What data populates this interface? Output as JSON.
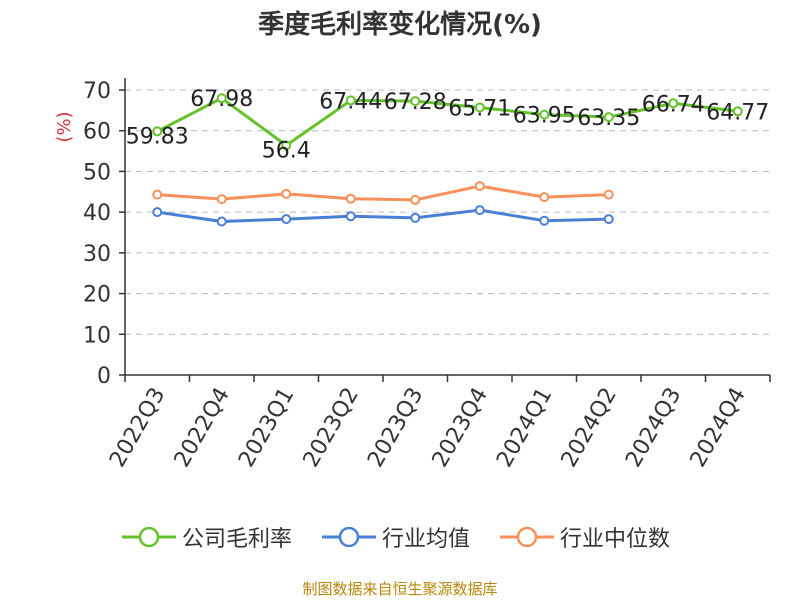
{
  "title": "季度毛利率变化情况(%)",
  "source_note": "制图数据来自恒生聚源数据库",
  "colors": {
    "company": "#66c22a",
    "industry_avg": "#4a7fd6",
    "industry_median": "#f7905a",
    "axis": "#333333",
    "grid": "#bbbbbb",
    "ylabel": "#d4323c",
    "source": "#b8860b"
  },
  "chart_data": {
    "type": "line",
    "title": "季度毛利率变化情况(%)",
    "xlabel": "",
    "ylabel": "(%)",
    "ylim": [
      0,
      70
    ],
    "yticks": [
      0,
      10,
      20,
      30,
      40,
      50,
      60,
      70
    ],
    "grid": true,
    "legend_position": "bottom",
    "categories": [
      "2022Q3",
      "2022Q4",
      "2023Q1",
      "2023Q2",
      "2023Q3",
      "2023Q4",
      "2024Q1",
      "2024Q2",
      "2024Q3",
      "2024Q4"
    ],
    "series": [
      {
        "name": "公司毛利率",
        "color_key": "company",
        "values": [
          59.83,
          67.98,
          56.4,
          67.44,
          67.28,
          65.71,
          63.95,
          63.35,
          66.74,
          64.77
        ],
        "labels": [
          "59.83",
          "67.98",
          "56.4",
          "67.44",
          "67.28",
          "65.71",
          "63.95",
          "63.35",
          "66.74",
          "64.77"
        ]
      },
      {
        "name": "行业均值",
        "color_key": "industry_avg",
        "values": [
          40.0,
          37.7,
          38.3,
          39.0,
          38.6,
          40.5,
          37.9,
          38.3,
          null,
          null
        ]
      },
      {
        "name": "行业中位数",
        "color_key": "industry_median",
        "values": [
          44.3,
          43.2,
          44.5,
          43.3,
          43.0,
          46.4,
          43.7,
          44.3,
          null,
          null
        ]
      }
    ]
  }
}
